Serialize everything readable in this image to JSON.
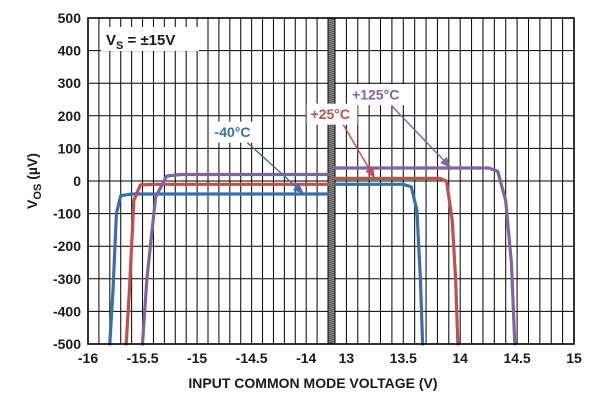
{
  "chart_data": {
    "type": "line",
    "xlabel": "INPUT COMMON MODE VOLTAGE (V)",
    "ylabel_main": "V",
    "ylabel_sub": "OS",
    "ylabel_unit": " (µV)",
    "condition_main": "V",
    "condition_sub": "S",
    "condition_value": " = ±15V",
    "ylim": [
      -500,
      500
    ],
    "yticks": [
      500,
      400,
      300,
      200,
      100,
      0,
      -100,
      -200,
      -300,
      -400,
      -500
    ],
    "ytick_labels": [
      "500",
      "400",
      "300",
      "200",
      "100",
      "0",
      "-100",
      "-200",
      "-300",
      "-400",
      "-500"
    ],
    "xaxis_break": true,
    "x_negative_segment": {
      "xlim": [
        -16,
        -13.8
      ],
      "ticks": [
        -16,
        -15.5,
        -15,
        -14.5,
        -14
      ],
      "tick_labels": [
        "-16",
        "-15.5",
        "-15",
        "-14.5",
        "-14"
      ]
    },
    "x_positive_segment": {
      "xlim": [
        12.9,
        15
      ],
      "ticks": [
        13,
        13.5,
        14,
        14.5,
        15
      ],
      "tick_labels": [
        "13",
        "13.5",
        "14",
        "14.5",
        "15"
      ]
    },
    "grid": true,
    "series": [
      {
        "name": "-40°C",
        "color": "#3a6fa8",
        "plateau": -40,
        "neg_points": [
          [
            -15.8,
            -500
          ],
          [
            -15.77,
            -330
          ],
          [
            -15.74,
            -100
          ],
          [
            -15.7,
            -45
          ],
          [
            -15.6,
            -40
          ],
          [
            -13.8,
            -40
          ]
        ],
        "pos_points": [
          [
            12.9,
            -10
          ],
          [
            13.5,
            -10
          ],
          [
            13.57,
            -18
          ],
          [
            13.62,
            -90
          ],
          [
            13.65,
            -300
          ],
          [
            13.67,
            -500
          ]
        ]
      },
      {
        "name": "+25°C",
        "color": "#c0504d",
        "plateau": -10,
        "neg_points": [
          [
            -15.65,
            -500
          ],
          [
            -15.62,
            -330
          ],
          [
            -15.58,
            -60
          ],
          [
            -15.52,
            -12
          ],
          [
            -15.4,
            -10
          ],
          [
            -13.8,
            -10
          ]
        ],
        "pos_points": [
          [
            12.9,
            8
          ],
          [
            13.82,
            8
          ],
          [
            13.88,
            0
          ],
          [
            13.93,
            -120
          ],
          [
            13.96,
            -300
          ],
          [
            13.98,
            -500
          ]
        ]
      },
      {
        "name": "+125°C",
        "color": "#8064a2",
        "plateau": 20,
        "neg_points": [
          [
            -15.5,
            -500
          ],
          [
            -15.46,
            -300
          ],
          [
            -15.38,
            -50
          ],
          [
            -15.28,
            15
          ],
          [
            -15.15,
            20
          ],
          [
            -13.8,
            20
          ]
        ],
        "pos_points": [
          [
            12.9,
            40
          ],
          [
            14.25,
            40
          ],
          [
            14.33,
            30
          ],
          [
            14.4,
            -60
          ],
          [
            14.45,
            -250
          ],
          [
            14.48,
            -500
          ]
        ]
      }
    ],
    "callouts": [
      {
        "series": "-40°C",
        "label": "-40°C",
        "text_x": -14.84,
        "text_value": 150,
        "target_x": -14.02,
        "target_value": -40
      },
      {
        "series": "+25°C",
        "label": "+25°C",
        "text_x": -13.96,
        "text_value": 205,
        "target_x": 13.25,
        "target_value": 8
      },
      {
        "series": "+125°C",
        "label": "+125°C",
        "text_x": 13.05,
        "text_value": 265,
        "target_x": 13.92,
        "target_value": 40
      }
    ]
  }
}
